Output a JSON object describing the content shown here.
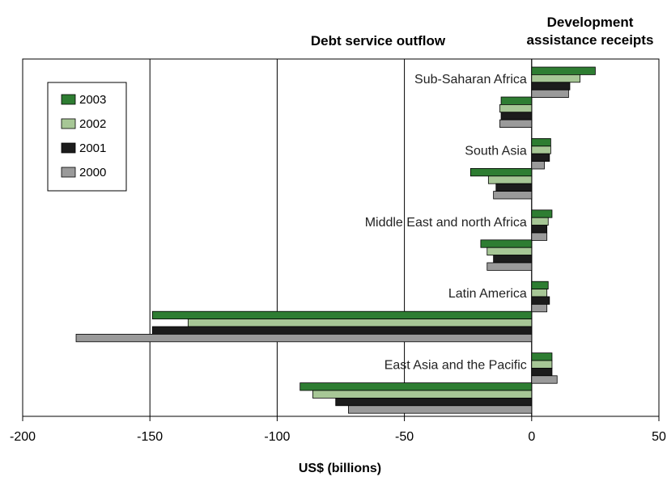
{
  "chart_data": {
    "type": "bar",
    "orientation": "horizontal",
    "header_left": "Debt service outflow",
    "header_right_line1": "Development",
    "header_right_line2": "assistance receipts",
    "xlabel": "US$ (billions)",
    "xlim": [
      -200,
      50
    ],
    "xticks": [
      -200,
      -150,
      -100,
      -50,
      0,
      50
    ],
    "grid": "vertical",
    "legend_position": "top-left",
    "categories": [
      "Sub-Saharan Africa",
      "South Asia",
      "Middle East and north Africa",
      "Latin America",
      "East Asia and the Pacific"
    ],
    "series": [
      {
        "name": "2003",
        "color": "#2e7d32",
        "receipts": [
          25,
          7.5,
          8,
          6.5,
          8
        ],
        "outflow": [
          -12,
          -24,
          -20,
          -149,
          -91
        ]
      },
      {
        "name": "2002",
        "color": "#a7c796",
        "receipts": [
          19,
          7.5,
          6.5,
          6,
          8
        ],
        "outflow": [
          -12.5,
          -17,
          -17.5,
          -135,
          -86
        ]
      },
      {
        "name": "2001",
        "color": "#1c1c1c",
        "receipts": [
          15,
          7,
          6,
          7,
          8
        ],
        "outflow": [
          -12,
          -14,
          -15,
          -149,
          -77
        ]
      },
      {
        "name": "2000",
        "color": "#9a9a9a",
        "receipts": [
          14.5,
          5,
          6,
          6,
          10
        ],
        "outflow": [
          -12.5,
          -15,
          -17.5,
          -179,
          -72
        ]
      }
    ]
  }
}
